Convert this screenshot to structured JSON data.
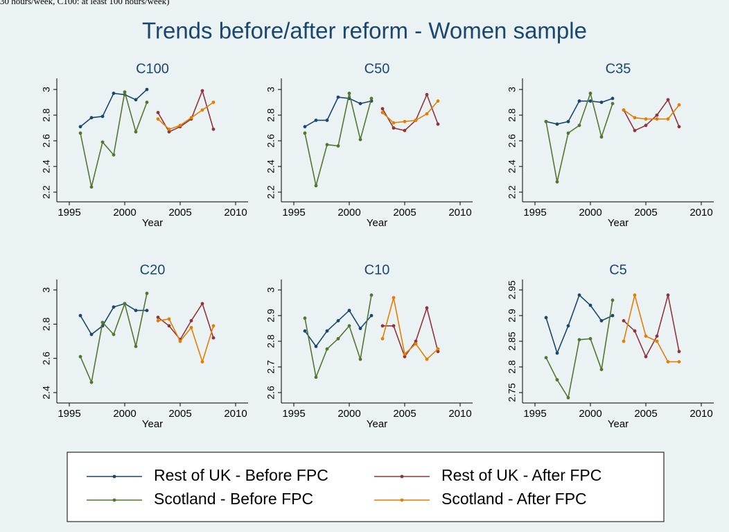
{
  "note": "30 hours/week, C100: at least 100 hours/week)",
  "title": "Trends before/after reform - Women sample",
  "legend_position": "bottom",
  "chart_data": [
    {
      "type": "line",
      "title": "C100",
      "xlabel": "Year",
      "xlim": [
        1995,
        2010
      ],
      "xticks": [
        1995,
        2000,
        2005,
        2010
      ],
      "ylim": [
        2.2,
        3
      ],
      "yticks": [
        2.2,
        2.4,
        2.6,
        2.8,
        3
      ],
      "series": [
        {
          "name": "Rest of UK - Before FPC",
          "color": "#1a476f",
          "x": [
            1996,
            1997,
            1998,
            1999,
            2000,
            2001,
            2002
          ],
          "values": [
            2.71,
            2.78,
            2.79,
            2.97,
            2.96,
            2.92,
            3.0
          ]
        },
        {
          "name": "Scotland - Before FPC",
          "color": "#55752f",
          "x": [
            1996,
            1997,
            1998,
            1999,
            2000,
            2001,
            2002
          ],
          "values": [
            2.66,
            2.24,
            2.59,
            2.49,
            2.98,
            2.67,
            2.9
          ]
        },
        {
          "name": "Rest of UK - After FPC",
          "color": "#90353b",
          "x": [
            2003,
            2004,
            2005,
            2006,
            2007,
            2008
          ],
          "values": [
            2.82,
            2.67,
            2.71,
            2.77,
            2.99,
            2.69
          ]
        },
        {
          "name": "Scotland - After FPC",
          "color": "#e37e00",
          "x": [
            2003,
            2004,
            2005,
            2006,
            2007,
            2008
          ],
          "values": [
            2.77,
            2.69,
            2.72,
            2.78,
            2.84,
            2.9
          ]
        }
      ]
    },
    {
      "type": "line",
      "title": "C50",
      "xlabel": "Year",
      "xlim": [
        1995,
        2010
      ],
      "xticks": [
        1995,
        2000,
        2005,
        2010
      ],
      "ylim": [
        2.2,
        3
      ],
      "yticks": [
        2.2,
        2.4,
        2.6,
        2.8,
        3
      ],
      "series": [
        {
          "name": "Rest of UK - Before FPC",
          "color": "#1a476f",
          "x": [
            1996,
            1997,
            1998,
            1999,
            2000,
            2001,
            2002
          ],
          "values": [
            2.71,
            2.76,
            2.76,
            2.94,
            2.93,
            2.89,
            2.91
          ]
        },
        {
          "name": "Scotland - Before FPC",
          "color": "#55752f",
          "x": [
            1996,
            1997,
            1998,
            1999,
            2000,
            2001,
            2002
          ],
          "values": [
            2.66,
            2.25,
            2.57,
            2.56,
            2.97,
            2.61,
            2.93
          ]
        },
        {
          "name": "Rest of UK - After FPC",
          "color": "#90353b",
          "x": [
            2003,
            2004,
            2005,
            2006,
            2007,
            2008
          ],
          "values": [
            2.85,
            2.7,
            2.68,
            2.76,
            2.96,
            2.73
          ]
        },
        {
          "name": "Scotland - After FPC",
          "color": "#e37e00",
          "x": [
            2003,
            2004,
            2005,
            2006,
            2007,
            2008
          ],
          "values": [
            2.82,
            2.74,
            2.75,
            2.76,
            2.81,
            2.91
          ]
        }
      ]
    },
    {
      "type": "line",
      "title": "C35",
      "xlabel": "Year",
      "xlim": [
        1995,
        2010
      ],
      "xticks": [
        1995,
        2000,
        2005,
        2010
      ],
      "ylim": [
        2.2,
        3
      ],
      "yticks": [
        2.2,
        2.4,
        2.6,
        2.8,
        3
      ],
      "series": [
        {
          "name": "Rest of UK - Before FPC",
          "color": "#1a476f",
          "x": [
            1996,
            1997,
            1998,
            1999,
            2000,
            2001,
            2002
          ],
          "values": [
            2.75,
            2.73,
            2.75,
            2.91,
            2.91,
            2.9,
            2.93
          ]
        },
        {
          "name": "Scotland - Before FPC",
          "color": "#55752f",
          "x": [
            1996,
            1997,
            1998,
            1999,
            2000,
            2001,
            2002
          ],
          "values": [
            2.75,
            2.28,
            2.66,
            2.72,
            2.97,
            2.63,
            2.89
          ]
        },
        {
          "name": "Rest of UK - After FPC",
          "color": "#90353b",
          "x": [
            2003,
            2004,
            2005,
            2006,
            2007,
            2008
          ],
          "values": [
            2.84,
            2.68,
            2.72,
            2.8,
            2.92,
            2.71
          ]
        },
        {
          "name": "Scotland - After FPC",
          "color": "#e37e00",
          "x": [
            2003,
            2004,
            2005,
            2006,
            2007,
            2008
          ],
          "values": [
            2.84,
            2.78,
            2.77,
            2.77,
            2.77,
            2.88
          ]
        }
      ]
    },
    {
      "type": "line",
      "title": "C20",
      "xlabel": "Year",
      "xlim": [
        1995,
        2010
      ],
      "xticks": [
        1995,
        2000,
        2005,
        2010
      ],
      "ylim": [
        2.4,
        3
      ],
      "yticks": [
        2.4,
        2.6,
        2.8,
        3
      ],
      "series": [
        {
          "name": "Rest of UK - Before FPC",
          "color": "#1a476f",
          "x": [
            1996,
            1997,
            1998,
            1999,
            2000,
            2001,
            2002
          ],
          "values": [
            2.85,
            2.74,
            2.79,
            2.9,
            2.92,
            2.88,
            2.88
          ]
        },
        {
          "name": "Scotland - Before FPC",
          "color": "#55752f",
          "x": [
            1996,
            1997,
            1998,
            1999,
            2000,
            2001,
            2002
          ],
          "values": [
            2.61,
            2.46,
            2.81,
            2.74,
            2.92,
            2.67,
            2.98
          ]
        },
        {
          "name": "Rest of UK - After FPC",
          "color": "#90353b",
          "x": [
            2003,
            2004,
            2005,
            2006,
            2007,
            2008
          ],
          "values": [
            2.84,
            2.79,
            2.71,
            2.82,
            2.92,
            2.72
          ]
        },
        {
          "name": "Scotland - After FPC",
          "color": "#e37e00",
          "x": [
            2003,
            2004,
            2005,
            2006,
            2007,
            2008
          ],
          "values": [
            2.82,
            2.83,
            2.7,
            2.78,
            2.58,
            2.79
          ]
        }
      ]
    },
    {
      "type": "line",
      "title": "C10",
      "xlabel": "Year",
      "xlim": [
        1995,
        2010
      ],
      "xticks": [
        1995,
        2000,
        2005,
        2010
      ],
      "ylim": [
        2.6,
        3
      ],
      "yticks": [
        2.6,
        2.7,
        2.8,
        2.9,
        3
      ],
      "series": [
        {
          "name": "Rest of UK - Before FPC",
          "color": "#1a476f",
          "x": [
            1996,
            1997,
            1998,
            1999,
            2000,
            2001,
            2002
          ],
          "values": [
            2.84,
            2.78,
            2.84,
            2.88,
            2.92,
            2.85,
            2.9
          ]
        },
        {
          "name": "Scotland - Before FPC",
          "color": "#55752f",
          "x": [
            1996,
            1997,
            1998,
            1999,
            2000,
            2001,
            2002
          ],
          "values": [
            2.89,
            2.66,
            2.77,
            2.81,
            2.86,
            2.73,
            2.98
          ]
        },
        {
          "name": "Rest of UK - After FPC",
          "color": "#90353b",
          "x": [
            2003,
            2004,
            2005,
            2006,
            2007,
            2008
          ],
          "values": [
            2.86,
            2.86,
            2.74,
            2.8,
            2.93,
            2.76
          ]
        },
        {
          "name": "Scotland - After FPC",
          "color": "#e37e00",
          "x": [
            2003,
            2004,
            2005,
            2006,
            2007,
            2008
          ],
          "values": [
            2.81,
            2.97,
            2.75,
            2.79,
            2.73,
            2.77
          ]
        }
      ]
    },
    {
      "type": "line",
      "title": "C5",
      "xlabel": "Year",
      "xlim": [
        1995,
        2010
      ],
      "xticks": [
        1995,
        2000,
        2005,
        2010
      ],
      "ylim": [
        2.75,
        2.95
      ],
      "yticks": [
        2.75,
        2.8,
        2.85,
        2.9,
        2.95
      ],
      "series": [
        {
          "name": "Rest of UK - Before FPC",
          "color": "#1a476f",
          "x": [
            1996,
            1997,
            1998,
            1999,
            2000,
            2001,
            2002
          ],
          "values": [
            2.896,
            2.827,
            2.88,
            2.94,
            2.92,
            2.89,
            2.9
          ]
        },
        {
          "name": "Scotland - Before FPC",
          "color": "#55752f",
          "x": [
            1996,
            1997,
            1998,
            1999,
            2000,
            2001,
            2002
          ],
          "values": [
            2.818,
            2.775,
            2.74,
            2.853,
            2.855,
            2.795,
            2.93
          ]
        },
        {
          "name": "Rest of UK - After FPC",
          "color": "#90353b",
          "x": [
            2003,
            2004,
            2005,
            2006,
            2007,
            2008
          ],
          "values": [
            2.89,
            2.87,
            2.82,
            2.86,
            2.94,
            2.83
          ]
        },
        {
          "name": "Scotland - After FPC",
          "color": "#e37e00",
          "x": [
            2003,
            2004,
            2005,
            2006,
            2007,
            2008
          ],
          "values": [
            2.85,
            2.94,
            2.86,
            2.85,
            2.81,
            2.81
          ]
        }
      ]
    }
  ]
}
